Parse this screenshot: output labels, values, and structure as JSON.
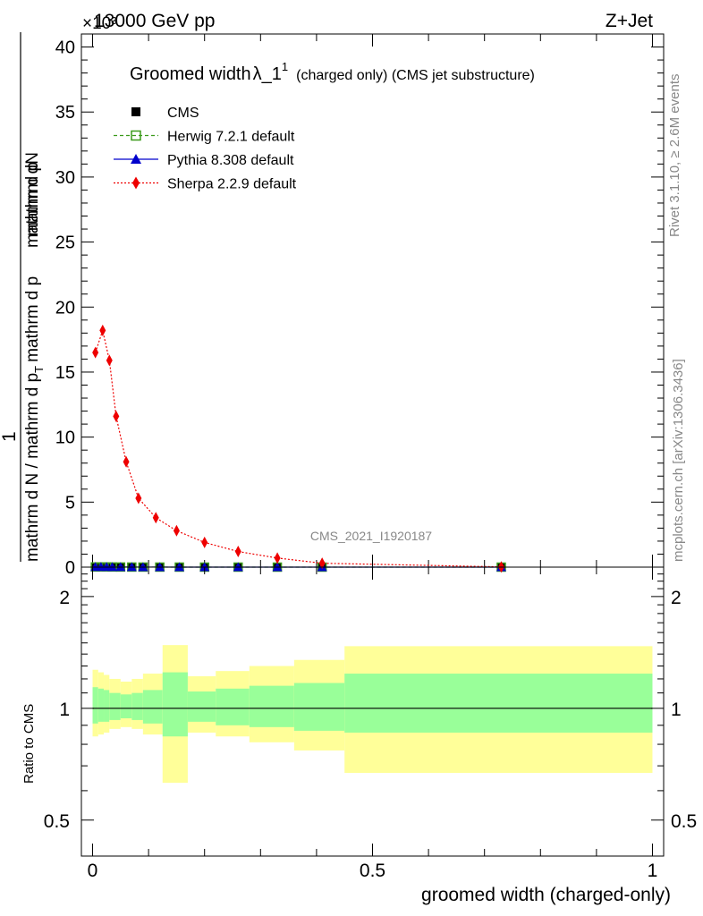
{
  "header": {
    "left_label": "13000 GeV pp",
    "right_label": "Z+Jet",
    "multiplier": "×10³"
  },
  "side_labels": {
    "rivet": "Rivet 3.1.10, ≥ 2.6M events",
    "mcplots": "mcplots.cern.ch [arXiv:1306.3436]"
  },
  "watermark": "CMS_2021_I1920187",
  "chart_data": [
    {
      "type": "scatter",
      "title_main": "Groomed width",
      "title_symbol": "λ_1",
      "title_sup": "1",
      "title_sub": "(charged only) (CMS jet substructure)",
      "ylabel_numerator": "mathrm dN",
      "ylabel_mid": "mathrm d p",
      "ylabel_mid_sub": "T",
      "ylabel_mid2": "mathrm d lambda",
      "ylabel_one": "1",
      "ylabel_denominator": "mathrm d N / mathrm d p",
      "ylabel_den_sub": "T",
      "ylabel_den_rest": "mathrm d p",
      "ylim": [
        0,
        41
      ],
      "yticks": [
        "0",
        "5",
        "10",
        "15",
        "20",
        "25",
        "30",
        "35",
        "40"
      ],
      "ytick_values": [
        0,
        5,
        10,
        15,
        20,
        25,
        30,
        35,
        40
      ],
      "xlim": [
        -0.02,
        1.02
      ],
      "legend_position": "top-left",
      "series": [
        {
          "name": "CMS",
          "color": "#000000",
          "marker": "square",
          "x": [
            0.005,
            0.015,
            0.025,
            0.035,
            0.05,
            0.07,
            0.09,
            0.12,
            0.155,
            0.2,
            0.26,
            0.33,
            0.41,
            0.73
          ],
          "y": [
            0.015,
            0.018,
            0.016,
            0.012,
            0.008,
            0.0052,
            0.0038,
            0.0028,
            0.0019,
            0.0012,
            0.0007,
            0.0003,
            0.0001,
            0.0
          ]
        },
        {
          "name": "Herwig 7.2.1 default",
          "color": "#3a9a1a",
          "marker": "open-square",
          "x": [
            0.005,
            0.015,
            0.025,
            0.035,
            0.05,
            0.07,
            0.09,
            0.12,
            0.155,
            0.2,
            0.26,
            0.33,
            0.41,
            0.73
          ],
          "y": [
            0.015,
            0.018,
            0.016,
            0.012,
            0.008,
            0.0052,
            0.0038,
            0.0028,
            0.0019,
            0.0012,
            0.0007,
            0.0003,
            0.0001,
            0.0
          ]
        },
        {
          "name": "Pythia 8.308 default",
          "color": "#0000cc",
          "marker": "triangle",
          "x": [
            0.005,
            0.015,
            0.025,
            0.035,
            0.05,
            0.07,
            0.09,
            0.12,
            0.155,
            0.2,
            0.26,
            0.33,
            0.41,
            0.73
          ],
          "y": [
            0.015,
            0.018,
            0.016,
            0.012,
            0.008,
            0.0052,
            0.0038,
            0.0028,
            0.0019,
            0.0012,
            0.0007,
            0.0003,
            0.0001,
            0.0
          ]
        },
        {
          "name": "Sherpa 2.2.9 default",
          "color": "#ee0000",
          "marker": "diamond",
          "x": [
            0.005,
            0.018,
            0.03,
            0.042,
            0.06,
            0.082,
            0.113,
            0.15,
            0.2,
            0.26,
            0.33,
            0.41,
            0.73
          ],
          "y": [
            16.5,
            18.2,
            15.9,
            11.6,
            8.1,
            5.3,
            3.8,
            2.8,
            1.9,
            1.2,
            0.7,
            0.3,
            0.02
          ]
        }
      ]
    },
    {
      "type": "area",
      "ylabel": "Ratio to CMS",
      "xlabel": "groomed width (charged-only)",
      "log_y": true,
      "ylim": [
        0.4,
        2.4
      ],
      "yticks": [
        "0.5",
        "1",
        "2"
      ],
      "ytick_values": [
        0.5,
        1,
        2
      ],
      "xticks": [
        "0",
        "0.5",
        "1"
      ],
      "xtick_values": [
        0,
        0.5,
        1
      ],
      "xlim": [
        -0.02,
        1.02
      ],
      "reference_line": 1,
      "bins": [
        {
          "x0": 0.0,
          "x1": 0.01,
          "inner": [
            0.91,
            1.14
          ],
          "outer": [
            0.84,
            1.27
          ]
        },
        {
          "x0": 0.01,
          "x1": 0.02,
          "inner": [
            0.92,
            1.13
          ],
          "outer": [
            0.85,
            1.25
          ]
        },
        {
          "x0": 0.02,
          "x1": 0.03,
          "inner": [
            0.92,
            1.12
          ],
          "outer": [
            0.86,
            1.23
          ]
        },
        {
          "x0": 0.03,
          "x1": 0.05,
          "inner": [
            0.93,
            1.1
          ],
          "outer": [
            0.88,
            1.2
          ]
        },
        {
          "x0": 0.05,
          "x1": 0.07,
          "inner": [
            0.94,
            1.09
          ],
          "outer": [
            0.89,
            1.18
          ]
        },
        {
          "x0": 0.07,
          "x1": 0.09,
          "inner": [
            0.93,
            1.1
          ],
          "outer": [
            0.88,
            1.2
          ]
        },
        {
          "x0": 0.09,
          "x1": 0.125,
          "inner": [
            0.91,
            1.12
          ],
          "outer": [
            0.85,
            1.24
          ]
        },
        {
          "x0": 0.125,
          "x1": 0.17,
          "inner": [
            0.84,
            1.25
          ],
          "outer": [
            0.63,
            1.48
          ]
        },
        {
          "x0": 0.17,
          "x1": 0.22,
          "inner": [
            0.92,
            1.11
          ],
          "outer": [
            0.86,
            1.22
          ]
        },
        {
          "x0": 0.22,
          "x1": 0.28,
          "inner": [
            0.9,
            1.13
          ],
          "outer": [
            0.84,
            1.26
          ]
        },
        {
          "x0": 0.28,
          "x1": 0.36,
          "inner": [
            0.89,
            1.15
          ],
          "outer": [
            0.81,
            1.3
          ]
        },
        {
          "x0": 0.36,
          "x1": 0.45,
          "inner": [
            0.87,
            1.17
          ],
          "outer": [
            0.77,
            1.35
          ]
        },
        {
          "x0": 0.45,
          "x1": 1.0,
          "inner": [
            0.86,
            1.24
          ],
          "outer": [
            0.67,
            1.47
          ]
        }
      ]
    }
  ]
}
